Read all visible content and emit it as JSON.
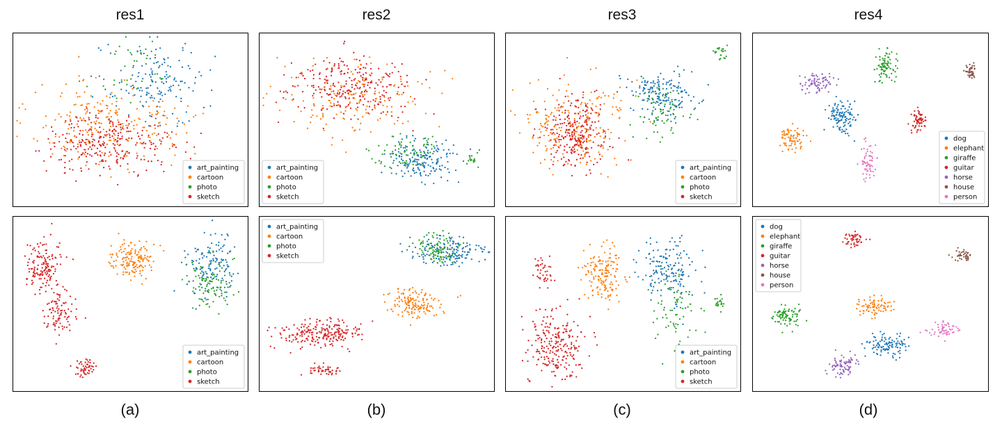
{
  "figure": {
    "column_titles": [
      "res1",
      "res2",
      "res3",
      "res4"
    ],
    "column_labels": [
      "(a)",
      "(b)",
      "(c)",
      "(d)"
    ]
  },
  "colors": {
    "blue": "#1f77b4",
    "orange": "#ff7f0e",
    "green": "#2ca02c",
    "red": "#d62728",
    "purple": "#9467bd",
    "brown": "#8c564b",
    "pink": "#e377c2"
  },
  "legends": {
    "domains": [
      "art_painting",
      "cartoon",
      "photo",
      "sketch"
    ],
    "classes": [
      "dog",
      "elephant",
      "giraffe",
      "guitar",
      "horse",
      "house",
      "person"
    ]
  },
  "chart_data": [
    {
      "type": "scatter",
      "id": "res1-top",
      "title": "res1",
      "label": "(a)",
      "color_by": "domain",
      "legend_entries": [
        "art_painting",
        "cartoon",
        "photo",
        "sketch"
      ],
      "legend_position": "lower-right",
      "xlim": [
        0,
        100
      ],
      "ylim": [
        0,
        100
      ],
      "clusters": [
        {
          "name": "art_painting",
          "color": "blue",
          "cx": 62,
          "cy": 72,
          "sx": 14,
          "sy": 16,
          "n": 150
        },
        {
          "name": "photo",
          "color": "green",
          "cx": 52,
          "cy": 78,
          "sx": 12,
          "sy": 12,
          "n": 45
        },
        {
          "name": "cartoon",
          "color": "orange",
          "cx": 40,
          "cy": 46,
          "sx": 23,
          "sy": 17,
          "n": 230
        },
        {
          "name": "sketch",
          "color": "red",
          "cx": 40,
          "cy": 36,
          "sx": 19,
          "sy": 13,
          "n": 270
        }
      ]
    },
    {
      "type": "scatter",
      "id": "res2-top",
      "title": "res2",
      "label": "(b)",
      "color_by": "domain",
      "legend_entries": [
        "art_painting",
        "cartoon",
        "photo",
        "sketch"
      ],
      "legend_position": "lower-left",
      "xlim": [
        0,
        100
      ],
      "ylim": [
        0,
        100
      ],
      "clusters": [
        {
          "name": "sketch",
          "color": "red",
          "cx": 38,
          "cy": 70,
          "sx": 17,
          "sy": 11,
          "n": 260
        },
        {
          "name": "cartoon",
          "color": "orange",
          "cx": 40,
          "cy": 62,
          "sx": 22,
          "sy": 15,
          "n": 160
        },
        {
          "name": "art_painting",
          "color": "blue",
          "cx": 69,
          "cy": 26,
          "sx": 9,
          "sy": 8,
          "n": 170
        },
        {
          "name": "photo",
          "color": "green",
          "cx": 63,
          "cy": 30,
          "sx": 10,
          "sy": 8,
          "n": 75
        },
        {
          "name": "photo",
          "color": "green",
          "cx": 92,
          "cy": 26,
          "sx": 2,
          "sy": 3,
          "n": 18
        }
      ]
    },
    {
      "type": "scatter",
      "id": "res3-top",
      "title": "res3",
      "label": "(c)",
      "color_by": "domain",
      "legend_entries": [
        "art_painting",
        "cartoon",
        "photo",
        "sketch"
      ],
      "legend_position": "lower-right",
      "xlim": [
        0,
        100
      ],
      "ylim": [
        0,
        100
      ],
      "clusters": [
        {
          "name": "art_painting",
          "color": "blue",
          "cx": 67,
          "cy": 66,
          "sx": 9,
          "sy": 8,
          "n": 170
        },
        {
          "name": "photo",
          "color": "green",
          "cx": 67,
          "cy": 56,
          "sx": 8,
          "sy": 12,
          "n": 70
        },
        {
          "name": "photo",
          "color": "green",
          "cx": 93,
          "cy": 90,
          "sx": 2,
          "sy": 3,
          "n": 22
        },
        {
          "name": "cartoon",
          "color": "orange",
          "cx": 29,
          "cy": 46,
          "sx": 16,
          "sy": 18,
          "n": 230
        },
        {
          "name": "sketch",
          "color": "red",
          "cx": 30,
          "cy": 42,
          "sx": 10,
          "sy": 16,
          "n": 240
        }
      ]
    },
    {
      "type": "scatter",
      "id": "res4-top",
      "title": "res4",
      "label": "(d)",
      "color_by": "class",
      "legend_entries": [
        "dog",
        "elephant",
        "giraffe",
        "guitar",
        "horse",
        "house",
        "person"
      ],
      "legend_position": "lower-right",
      "xlim": [
        0,
        100
      ],
      "ylim": [
        0,
        100
      ],
      "clusters": [
        {
          "name": "dog",
          "color": "blue",
          "cx": 38,
          "cy": 51,
          "sx": 4,
          "sy": 6,
          "n": 120
        },
        {
          "name": "elephant",
          "color": "orange",
          "cx": 16,
          "cy": 38,
          "sx": 4,
          "sy": 5,
          "n": 75
        },
        {
          "name": "giraffe",
          "color": "green",
          "cx": 57,
          "cy": 82,
          "sx": 3,
          "sy": 6,
          "n": 85
        },
        {
          "name": "guitar",
          "color": "red",
          "cx": 71,
          "cy": 49,
          "sx": 2.5,
          "sy": 4,
          "n": 60
        },
        {
          "name": "horse",
          "color": "purple",
          "cx": 27,
          "cy": 72,
          "sx": 5,
          "sy": 4,
          "n": 80
        },
        {
          "name": "house",
          "color": "brown",
          "cx": 94,
          "cy": 79,
          "sx": 1.8,
          "sy": 3.5,
          "n": 45
        },
        {
          "name": "person",
          "color": "pink",
          "cx": 49,
          "cy": 24,
          "sx": 2.5,
          "sy": 7,
          "n": 65
        }
      ]
    },
    {
      "type": "scatter",
      "id": "res1-bottom",
      "title": "res1",
      "label": "(a)",
      "color_by": "domain",
      "legend_entries": [
        "art_painting",
        "cartoon",
        "photo",
        "sketch"
      ],
      "legend_position": "lower-right",
      "xlim": [
        0,
        100
      ],
      "ylim": [
        0,
        100
      ],
      "clusters": [
        {
          "name": "sketch",
          "color": "red",
          "cx": 12,
          "cy": 72,
          "sx": 5,
          "sy": 10,
          "n": 150
        },
        {
          "name": "sketch",
          "color": "red",
          "cx": 19,
          "cy": 46,
          "sx": 4,
          "sy": 8,
          "n": 90
        },
        {
          "name": "sketch",
          "color": "red",
          "cx": 30,
          "cy": 12,
          "sx": 3,
          "sy": 4,
          "n": 55
        },
        {
          "name": "cartoon",
          "color": "orange",
          "cx": 52,
          "cy": 76,
          "sx": 7,
          "sy": 8,
          "n": 150
        },
        {
          "name": "art_painting",
          "color": "blue",
          "cx": 85,
          "cy": 73,
          "sx": 7,
          "sy": 12,
          "n": 140
        },
        {
          "name": "photo",
          "color": "green",
          "cx": 85,
          "cy": 62,
          "sx": 6,
          "sy": 9,
          "n": 95
        }
      ]
    },
    {
      "type": "scatter",
      "id": "res2-bottom",
      "title": "res2",
      "label": "(b)",
      "color_by": "domain",
      "legend_entries": [
        "art_painting",
        "cartoon",
        "photo",
        "sketch"
      ],
      "legend_position": "upper-left",
      "xlim": [
        0,
        100
      ],
      "ylim": [
        0,
        100
      ],
      "clusters": [
        {
          "name": "art_painting",
          "color": "blue",
          "cx": 81,
          "cy": 81,
          "sx": 10,
          "sy": 6,
          "n": 150
        },
        {
          "name": "photo",
          "color": "green",
          "cx": 77,
          "cy": 82,
          "sx": 7,
          "sy": 6,
          "n": 100
        },
        {
          "name": "cartoon",
          "color": "orange",
          "cx": 66,
          "cy": 50,
          "sx": 8,
          "sy": 6,
          "n": 150
        },
        {
          "name": "sketch",
          "color": "red",
          "cx": 26,
          "cy": 32,
          "sx": 12,
          "sy": 6,
          "n": 220
        },
        {
          "name": "sketch",
          "color": "red",
          "cx": 27,
          "cy": 10,
          "sx": 5,
          "sy": 2.5,
          "n": 45
        }
      ]
    },
    {
      "type": "scatter",
      "id": "res3-bottom",
      "title": "res3",
      "label": "(c)",
      "color_by": "domain",
      "legend_entries": [
        "art_painting",
        "cartoon",
        "photo",
        "sketch"
      ],
      "legend_position": "lower-right",
      "xlim": [
        0,
        100
      ],
      "ylim": [
        0,
        100
      ],
      "clusters": [
        {
          "name": "art_painting",
          "color": "blue",
          "cx": 70,
          "cy": 70,
          "sx": 8,
          "sy": 12,
          "n": 160
        },
        {
          "name": "photo",
          "color": "green",
          "cx": 73,
          "cy": 50,
          "sx": 6,
          "sy": 14,
          "n": 70
        },
        {
          "name": "photo",
          "color": "green",
          "cx": 92,
          "cy": 50,
          "sx": 1.5,
          "sy": 3,
          "n": 22
        },
        {
          "name": "cartoon",
          "color": "orange",
          "cx": 42,
          "cy": 68,
          "sx": 6,
          "sy": 11,
          "n": 150
        },
        {
          "name": "sketch",
          "color": "red",
          "cx": 20,
          "cy": 25,
          "sx": 8,
          "sy": 14,
          "n": 230
        },
        {
          "name": "sketch",
          "color": "red",
          "cx": 15,
          "cy": 68,
          "sx": 3,
          "sy": 6,
          "n": 40
        }
      ]
    },
    {
      "type": "scatter",
      "id": "res4-bottom",
      "title": "res4",
      "label": "(d)",
      "color_by": "class",
      "legend_entries": [
        "dog",
        "elephant",
        "giraffe",
        "guitar",
        "horse",
        "house",
        "person"
      ],
      "legend_position": "upper-left",
      "xlim": [
        0,
        100
      ],
      "ylim": [
        0,
        100
      ],
      "clusters": [
        {
          "name": "dog",
          "color": "blue",
          "cx": 58,
          "cy": 25,
          "sx": 6,
          "sy": 5,
          "n": 110
        },
        {
          "name": "elephant",
          "color": "orange",
          "cx": 52,
          "cy": 48,
          "sx": 5,
          "sy": 4,
          "n": 80
        },
        {
          "name": "giraffe",
          "color": "green",
          "cx": 14,
          "cy": 43,
          "sx": 4,
          "sy": 4,
          "n": 80
        },
        {
          "name": "guitar",
          "color": "red",
          "cx": 43,
          "cy": 88,
          "sx": 3.5,
          "sy": 3,
          "n": 50
        },
        {
          "name": "horse",
          "color": "purple",
          "cx": 38,
          "cy": 13,
          "sx": 4,
          "sy": 4,
          "n": 80
        },
        {
          "name": "house",
          "color": "brown",
          "cx": 91,
          "cy": 78,
          "sx": 3,
          "sy": 2.5,
          "n": 40
        },
        {
          "name": "person",
          "color": "pink",
          "cx": 81,
          "cy": 35,
          "sx": 5,
          "sy": 3,
          "n": 55
        }
      ]
    }
  ]
}
